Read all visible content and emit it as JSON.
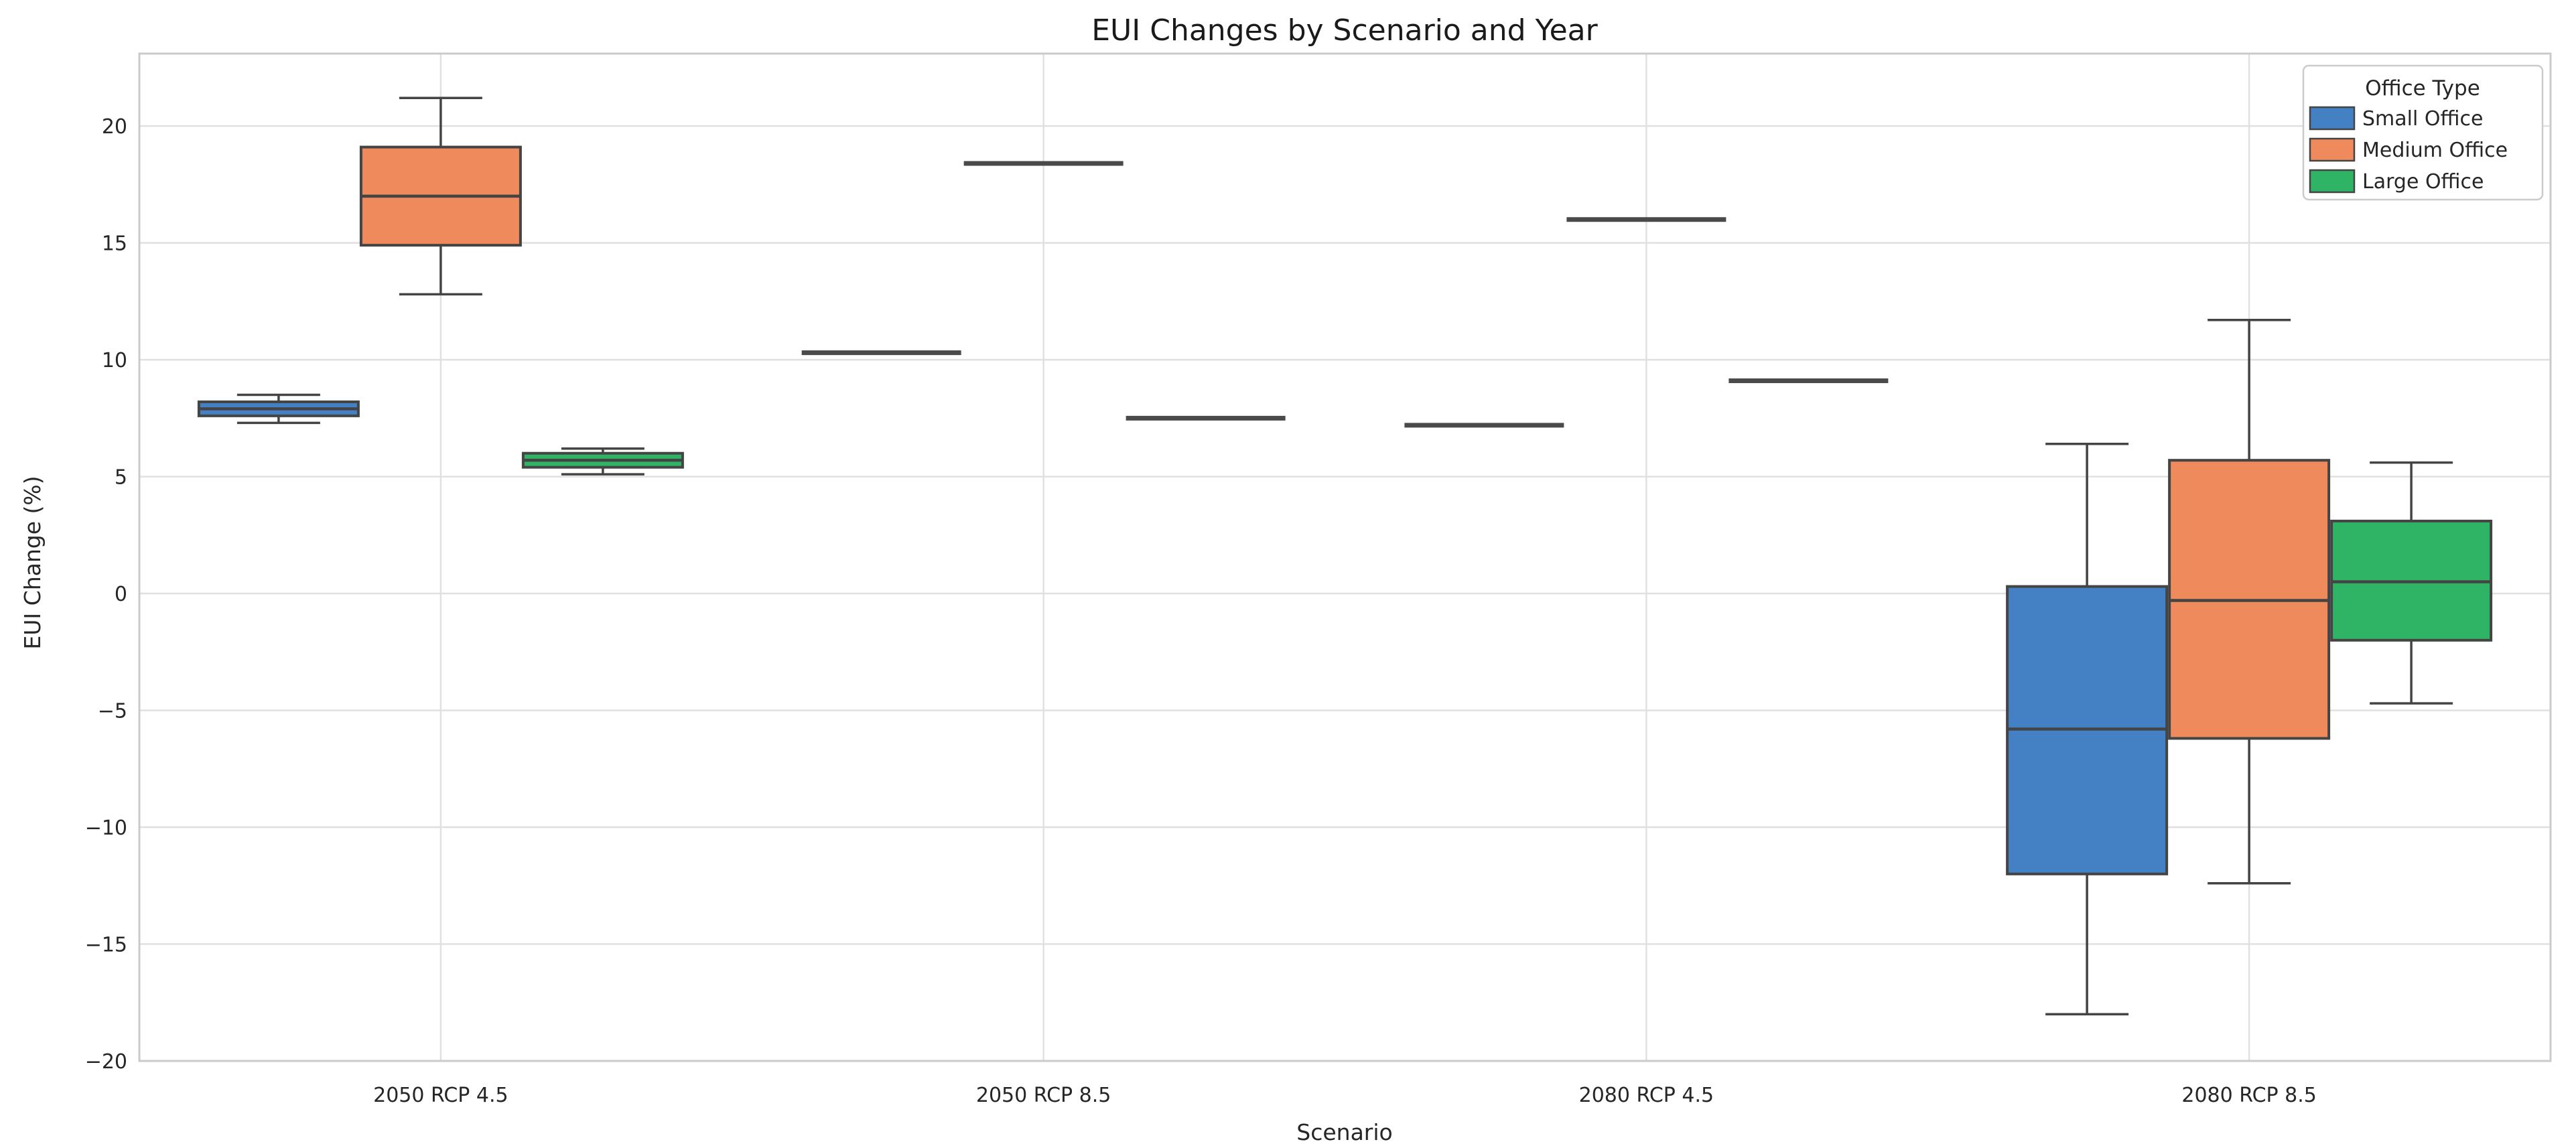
{
  "page_title": "EUI Changes by Scenario and Year",
  "chart_data": {
    "type": "boxplot",
    "title": "EUI Changes by Scenario and Year",
    "xlabel": "Scenario",
    "ylabel": "EUI Change (%)",
    "categories": [
      "2050 RCP 4.5",
      "2050 RCP 8.5",
      "2080 RCP 4.5",
      "2080 RCP 8.5"
    ],
    "yticks": [
      20,
      15,
      10,
      5,
      0,
      -5,
      -10,
      -15,
      -20
    ],
    "ylim": [
      -20.0,
      23.1
    ],
    "grid": true,
    "legend": {
      "title": "Office Type",
      "position": "upper right"
    },
    "series": [
      {
        "name": "Small Office",
        "color": "#4380C4",
        "boxes": [
          {
            "whislo": 7.3,
            "q1": 7.6,
            "med": 7.9,
            "q3": 8.2,
            "whishi": 8.5
          },
          {
            "whislo": 10.3,
            "q1": 10.3,
            "med": 10.3,
            "q3": 10.3,
            "whishi": 10.3
          },
          {
            "whislo": 7.2,
            "q1": 7.2,
            "med": 7.2,
            "q3": 7.2,
            "whishi": 7.2
          },
          {
            "whislo": -18.0,
            "q1": -12.0,
            "med": -5.8,
            "q3": 0.3,
            "whishi": 6.4
          }
        ]
      },
      {
        "name": "Medium Office",
        "color": "#EE8A5B",
        "boxes": [
          {
            "whislo": 12.8,
            "q1": 14.9,
            "med": 17.0,
            "q3": 19.1,
            "whishi": 21.2
          },
          {
            "whislo": 18.4,
            "q1": 18.4,
            "med": 18.4,
            "q3": 18.4,
            "whishi": 18.4
          },
          {
            "whislo": 16.0,
            "q1": 16.0,
            "med": 16.0,
            "q3": 16.0,
            "whishi": 16.0
          },
          {
            "whislo": -12.4,
            "q1": -6.2,
            "med": -0.3,
            "q3": 5.7,
            "whishi": 11.7
          }
        ]
      },
      {
        "name": "Large Office",
        "color": "#2FB465",
        "boxes": [
          {
            "whislo": 5.1,
            "q1": 5.4,
            "med": 5.7,
            "q3": 6.0,
            "whishi": 6.2
          },
          {
            "whislo": 7.5,
            "q1": 7.5,
            "med": 7.5,
            "q3": 7.5,
            "whishi": 7.5
          },
          {
            "whislo": 9.1,
            "q1": 9.1,
            "med": 9.1,
            "q3": 9.1,
            "whishi": 9.1
          },
          {
            "whislo": -4.7,
            "q1": -2.0,
            "med": 0.5,
            "q3": 3.1,
            "whishi": 5.6
          }
        ]
      }
    ],
    "colors": {
      "box_edge": "#444444",
      "flat_line": "#4a4a4a",
      "grid_line": "#E0E0E0",
      "spine": "#CBCBCB",
      "text": "#262626"
    }
  }
}
